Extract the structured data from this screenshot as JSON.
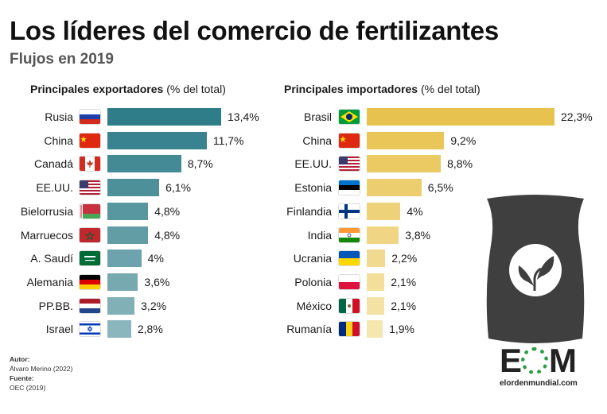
{
  "header": {
    "title": "Los líderes del comercio de fertilizantes",
    "subtitle": "Flujos en 2019"
  },
  "chart_data": [
    {
      "type": "bar",
      "orientation": "horizontal",
      "title": "Principales exportadores",
      "unit": "(% del total)",
      "categories": [
        "Rusia",
        "China",
        "Canadá",
        "EE.UU.",
        "Bielorrusia",
        "Marruecos",
        "A. Saudí",
        "Alemania",
        "PP.BB.",
        "Israel"
      ],
      "values": [
        13.4,
        11.7,
        8.7,
        6.1,
        4.8,
        4.8,
        4.0,
        3.6,
        3.2,
        2.8
      ],
      "value_labels": [
        "13,4%",
        "11,7%",
        "8,7%",
        "6,1%",
        "4,8%",
        "4,8%",
        "4%",
        "3,6%",
        "3,2%",
        "2,8%"
      ],
      "flags": [
        "russia-flag",
        "china-flag",
        "canada-flag",
        "usa-flag",
        "belarus-flag",
        "morocco-flag",
        "saudi-arabia-flag",
        "germany-flag",
        "netherlands-flag",
        "israel-flag"
      ],
      "color_start": "#2e7d89",
      "color_end": "#8cb6bd"
    },
    {
      "type": "bar",
      "orientation": "horizontal",
      "title": "Principales importadores",
      "unit": "(% del total)",
      "categories": [
        "Brasil",
        "China",
        "EE.UU.",
        "Estonia",
        "Finlandia",
        "India",
        "Ucrania",
        "Polonia",
        "México",
        "Rumanía"
      ],
      "values": [
        22.3,
        9.2,
        8.8,
        6.5,
        4.0,
        3.8,
        2.2,
        2.1,
        2.1,
        1.9
      ],
      "value_labels": [
        "22,3%",
        "9,2%",
        "8,8%",
        "6,5%",
        "4%",
        "3,8%",
        "2,2%",
        "2,1%",
        "2,1%",
        "1,9%"
      ],
      "flags": [
        "brazil-flag",
        "china-flag",
        "usa-flag",
        "estonia-flag",
        "finland-flag",
        "india-flag",
        "ukraine-flag",
        "poland-flag",
        "mexico-flag",
        "romania-flag"
      ],
      "color_start": "#e8c24e",
      "color_end": "#f6e6b0"
    }
  ],
  "credits": {
    "author_label": "Autor:",
    "author": "Álvaro Merino (2022)",
    "source_label": "Fuente:",
    "source": "OEC (2019)"
  },
  "logo": {
    "left": "E",
    "right": "M",
    "site": "elordenmundial.com",
    "accent": "#2e9e46"
  },
  "illustration": {
    "icon": "fertilizer-bag-icon",
    "color": "#3f3f3f"
  }
}
